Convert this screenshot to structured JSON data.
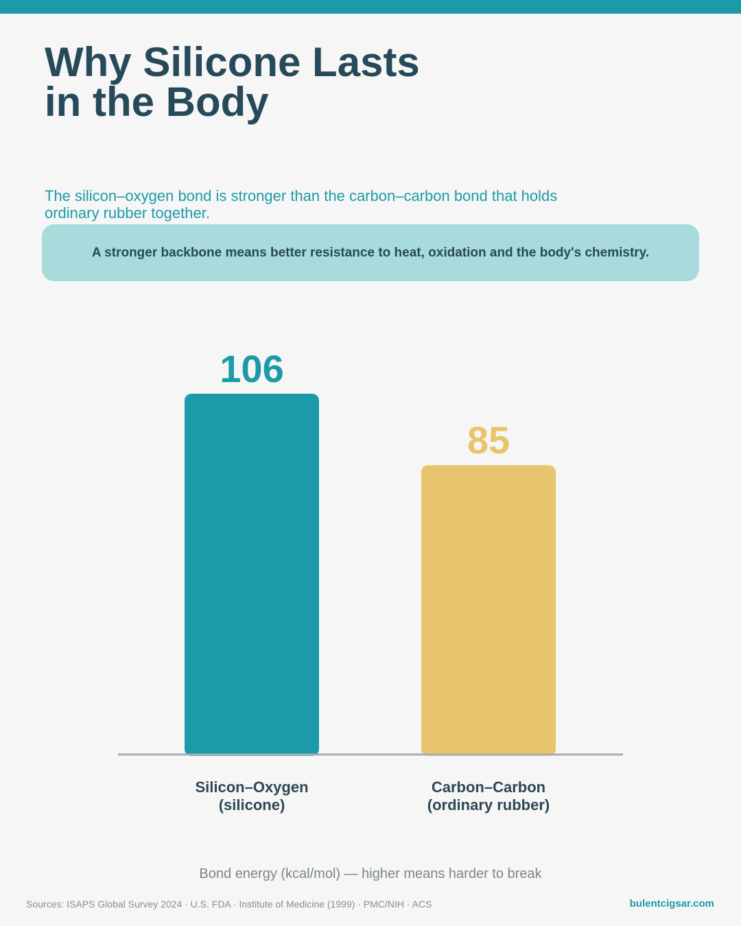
{
  "title": "Why Silicone Lasts\nin the Body",
  "subtitle": "The silicon–oxygen bond is stronger than the carbon–carbon bond that holds ordinary rubber together.",
  "callout": "A stronger backbone means better resistance to heat, oxidation and the body's chemistry.",
  "chart_data": {
    "type": "bar",
    "categories": [
      "Silicon–Oxygen\n(silicone)",
      "Carbon–Carbon\n(ordinary rubber)"
    ],
    "values": [
      106,
      85
    ],
    "colors": [
      "#1b9ba8",
      "#e8c46c"
    ],
    "x_label": "Bond energy (kcal/mol) — higher means harder to break"
  },
  "footer": {
    "sources": "Sources: ISAPS Global Survey 2024 · U.S. FDA · Institute of Medicine (1999) · PMC/NIH · ACS",
    "brand": "bulentcigsar.com"
  }
}
